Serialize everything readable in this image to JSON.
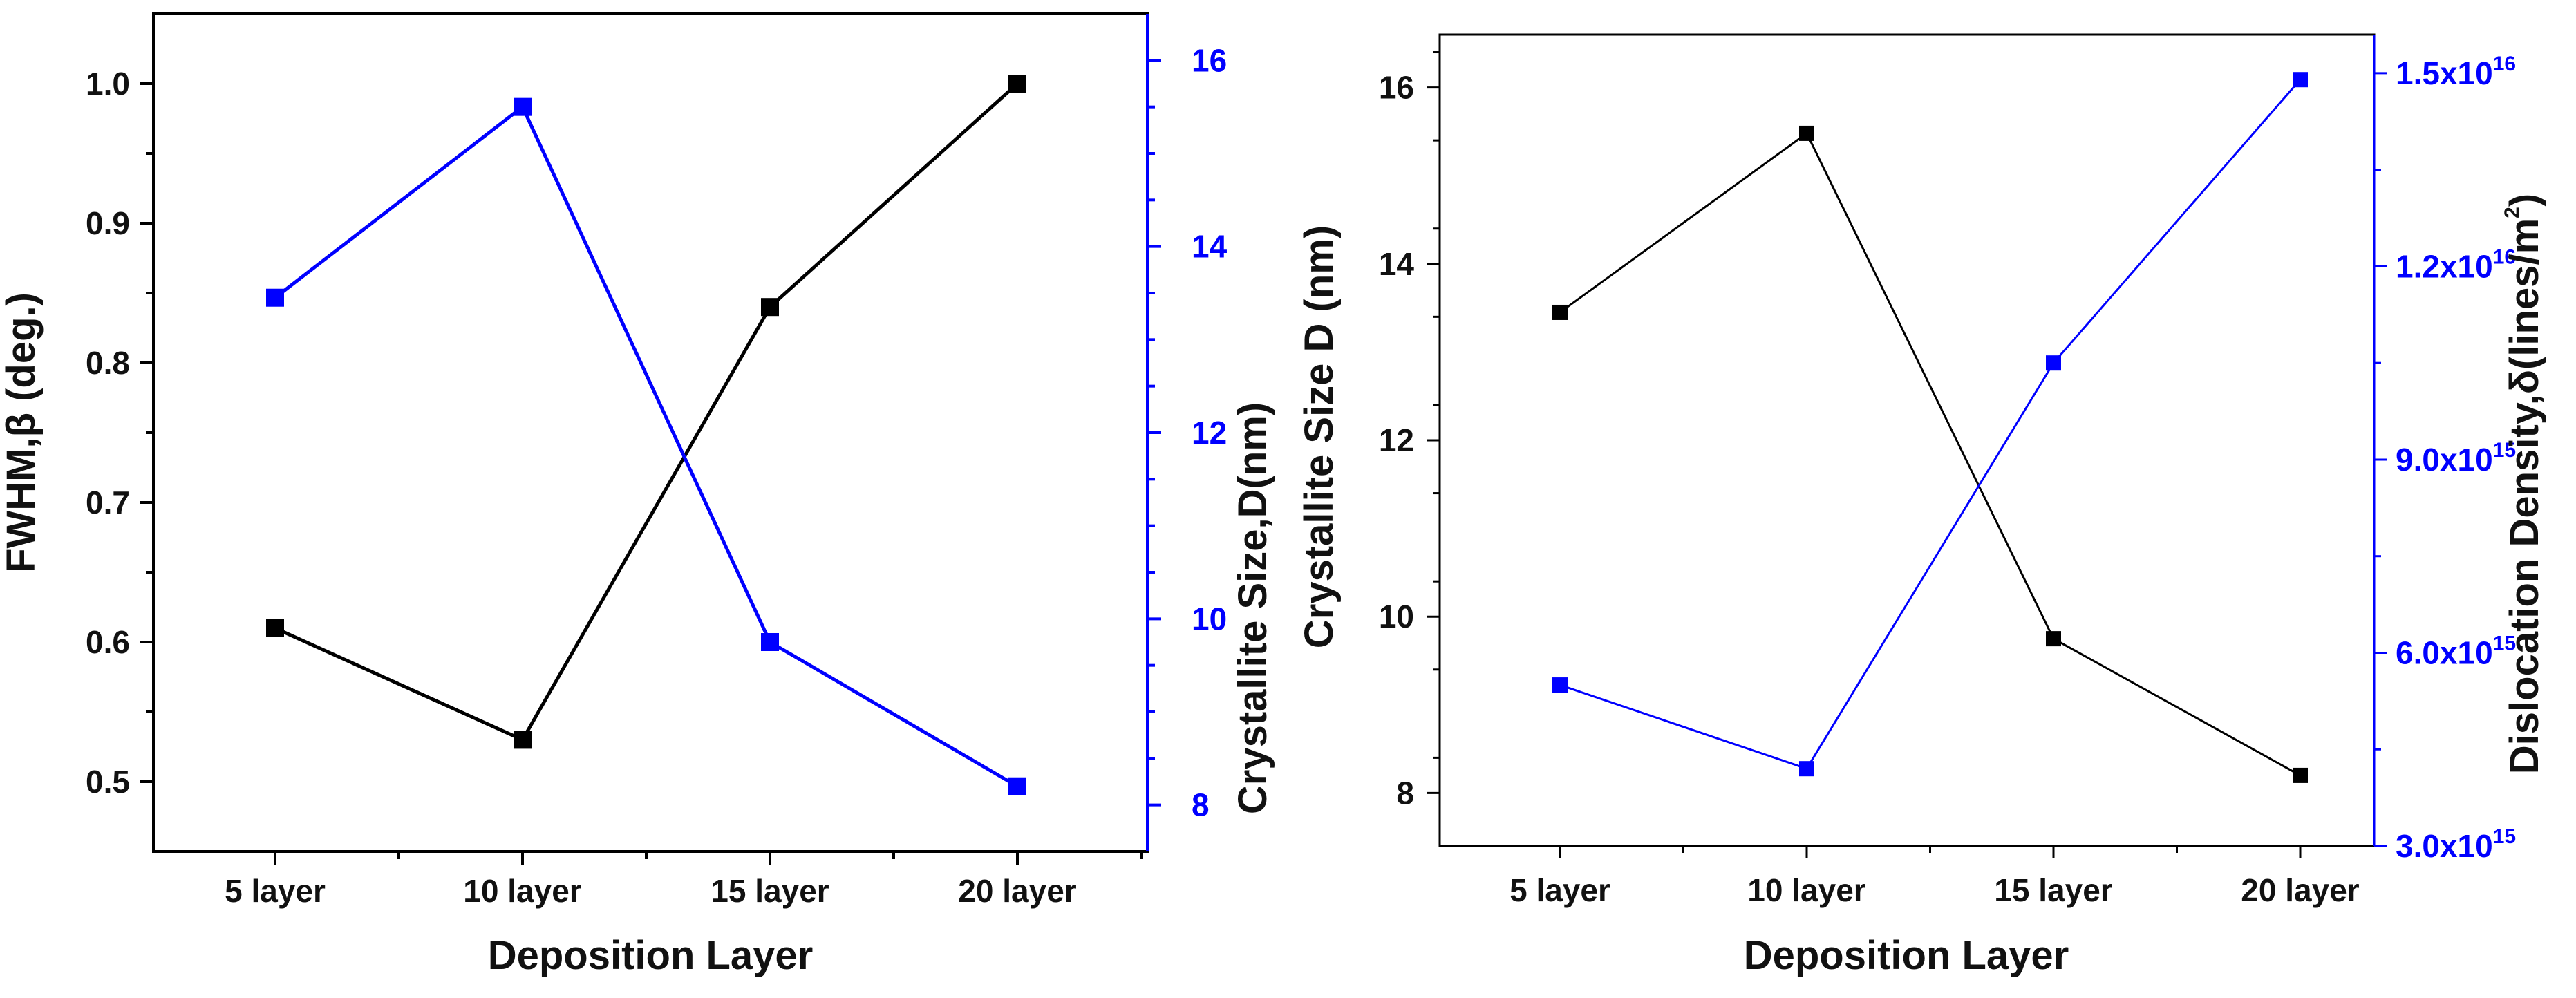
{
  "chart_data": [
    {
      "type": "line",
      "categories": [
        "5 layer",
        "10 layer",
        "15 layer",
        "20 layer"
      ],
      "xlabel": "Deposition Layer",
      "series": [
        {
          "name": "FWHM",
          "axis": "left",
          "color": "#000000",
          "values": [
            0.61,
            0.53,
            0.84,
            1.0
          ]
        },
        {
          "name": "Crystallite Size",
          "axis": "right",
          "color": "#0000ff",
          "values": [
            13.45,
            15.5,
            9.75,
            8.2
          ]
        }
      ],
      "ylabel_left": "FWHM,β (deg.)",
      "ylabel_right": "Crystallite Size,D(nm)",
      "ylim_left": [
        0.45,
        1.05
      ],
      "ylim_right": [
        7.5,
        16.5
      ],
      "yticks_left": [
        "0.5",
        "0.6",
        "0.7",
        "0.8",
        "0.9",
        "1.0"
      ],
      "yticks_left_values": [
        0.5,
        0.6,
        0.7,
        0.8,
        0.9,
        1.0
      ],
      "yticks_right": [
        "8",
        "10",
        "12",
        "14",
        "16"
      ],
      "yticks_right_values": [
        8,
        10,
        12,
        14,
        16
      ]
    },
    {
      "type": "line",
      "categories": [
        "5 layer",
        "10 layer",
        "15 layer",
        "20 layer"
      ],
      "xlabel": "Deposition Layer",
      "series": [
        {
          "name": "Crystallite Size D",
          "axis": "left",
          "color": "#000000",
          "values": [
            13.45,
            15.48,
            9.75,
            8.2
          ]
        },
        {
          "name": "Dislocation Density",
          "axis": "right",
          "color": "#0000ff",
          "values": [
            5500000000000000.0,
            4200000000000000.0,
            1.05e+16,
            1.49e+16
          ]
        }
      ],
      "ylabel_left": "Crystallite Size D (nm)",
      "ylabel_right_main": "Dislocation Density,δ(lines/m",
      "ylabel_right_sup": "2",
      "ylabel_right_end": ")",
      "ylim_left": [
        7.4,
        16.6
      ],
      "ylim_right": [
        3000000000000000.0,
        1.56e+16
      ],
      "yticks_left": [
        "8",
        "10",
        "12",
        "14",
        "16"
      ],
      "yticks_left_values": [
        8,
        10,
        12,
        14,
        16
      ],
      "yticks_right_values": [
        3000000000000000.0,
        6000000000000000.0,
        9000000000000000.0,
        1.2e+16,
        1.5e+16
      ],
      "yticks_right_mantissa": [
        "3.0x10",
        "6.0x10",
        "9.0x10",
        "1.2x10",
        "1.5x10"
      ],
      "yticks_right_exp": [
        "15",
        "15",
        "15",
        "16",
        "16"
      ]
    }
  ]
}
